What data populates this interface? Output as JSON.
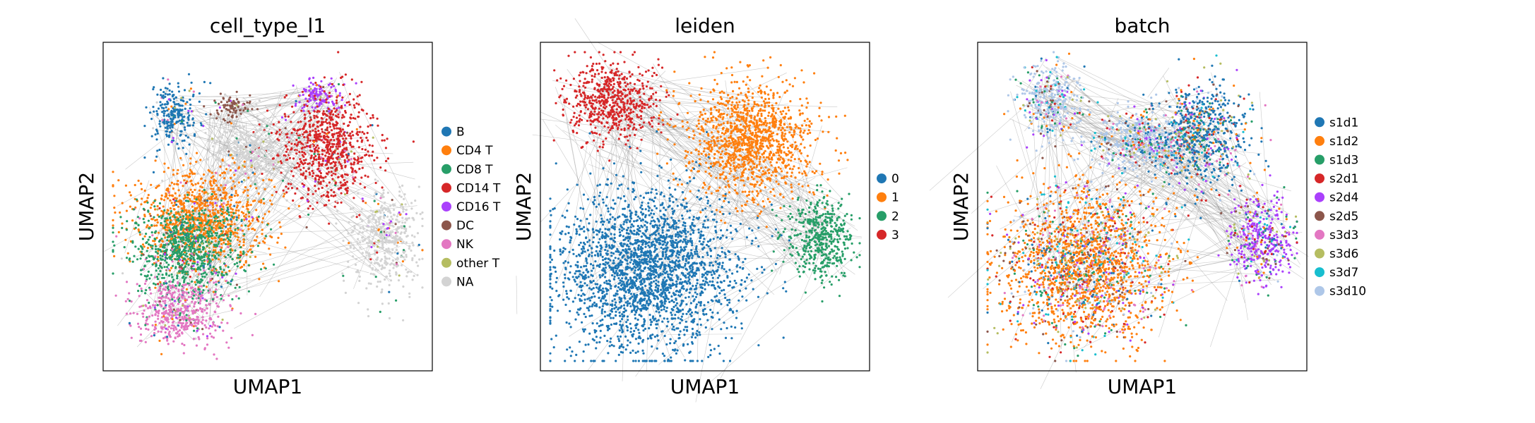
{
  "chart_data": [
    {
      "type": "scatter",
      "title": "cell_type_l1",
      "xlabel": "UMAP1",
      "ylabel": "UMAP2",
      "grid": false,
      "legend": "right",
      "legend_entries": [
        {
          "label": "B",
          "color": "#1f77b4"
        },
        {
          "label": "CD4 T",
          "color": "#ff7f0e"
        },
        {
          "label": "CD8 T",
          "color": "#279e68"
        },
        {
          "label": "CD14 T",
          "color": "#d62728"
        },
        {
          "label": "CD16 T",
          "color": "#aa40fc"
        },
        {
          "label": "DC",
          "color": "#8c564b"
        },
        {
          "label": "NK",
          "color": "#e377c2"
        },
        {
          "label": "other T",
          "color": "#b5bd61"
        },
        {
          "label": "NA",
          "color": "#d3d3d3"
        }
      ],
      "clusters": [
        {
          "label": "B",
          "cx": 0.22,
          "cy": 0.78,
          "rx": 0.07,
          "ry": 0.1
        },
        {
          "label": "DC",
          "cx": 0.4,
          "cy": 0.8,
          "rx": 0.06,
          "ry": 0.04
        },
        {
          "label": "CD16 T",
          "cx": 0.66,
          "cy": 0.84,
          "rx": 0.07,
          "ry": 0.05
        },
        {
          "label": "CD14 T",
          "cx": 0.68,
          "cy": 0.68,
          "rx": 0.14,
          "ry": 0.16
        },
        {
          "label": "NA",
          "cx": 0.44,
          "cy": 0.66,
          "rx": 0.12,
          "ry": 0.1
        },
        {
          "label": "NA",
          "cx": 0.86,
          "cy": 0.4,
          "rx": 0.1,
          "ry": 0.14
        },
        {
          "label": "CD4 T",
          "cx": 0.3,
          "cy": 0.46,
          "rx": 0.2,
          "ry": 0.15
        },
        {
          "label": "CD8 T",
          "cx": 0.26,
          "cy": 0.36,
          "rx": 0.17,
          "ry": 0.14
        },
        {
          "label": "NK",
          "cx": 0.24,
          "cy": 0.18,
          "rx": 0.14,
          "ry": 0.1
        }
      ]
    },
    {
      "type": "scatter",
      "title": "leiden",
      "xlabel": "UMAP1",
      "ylabel": "UMAP2",
      "grid": false,
      "legend": "right",
      "legend_entries": [
        {
          "label": "0",
          "color": "#1f77b4"
        },
        {
          "label": "1",
          "color": "#ff7f0e"
        },
        {
          "label": "2",
          "color": "#279e68"
        },
        {
          "label": "3",
          "color": "#d62728"
        }
      ],
      "clusters": [
        {
          "label": "3",
          "cx": 0.22,
          "cy": 0.82,
          "rx": 0.14,
          "ry": 0.12
        },
        {
          "label": "1",
          "cx": 0.64,
          "cy": 0.7,
          "rx": 0.19,
          "ry": 0.18
        },
        {
          "label": "2",
          "cx": 0.85,
          "cy": 0.4,
          "rx": 0.1,
          "ry": 0.13
        },
        {
          "label": "0",
          "cx": 0.32,
          "cy": 0.3,
          "rx": 0.27,
          "ry": 0.25
        }
      ]
    },
    {
      "type": "scatter",
      "title": "batch",
      "xlabel": "UMAP1",
      "ylabel": "UMAP2",
      "grid": false,
      "legend": "right",
      "legend_entries": [
        {
          "label": "s1d1",
          "color": "#1f77b4"
        },
        {
          "label": "s1d2",
          "color": "#ff7f0e"
        },
        {
          "label": "s1d3",
          "color": "#279e68"
        },
        {
          "label": "s2d1",
          "color": "#d62728"
        },
        {
          "label": "s2d4",
          "color": "#aa40fc"
        },
        {
          "label": "s2d5",
          "color": "#8c564b"
        },
        {
          "label": "s3d3",
          "color": "#e377c2"
        },
        {
          "label": "s3d6",
          "color": "#b5bd61"
        },
        {
          "label": "s3d7",
          "color": "#17becf"
        },
        {
          "label": "s3d10",
          "color": "#aec7e8"
        }
      ],
      "clusters": [
        {
          "label": "s3d10",
          "cx": 0.22,
          "cy": 0.82,
          "rx": 0.1,
          "ry": 0.11
        },
        {
          "label": "s3d10",
          "cx": 0.5,
          "cy": 0.7,
          "rx": 0.15,
          "ry": 0.1
        },
        {
          "label": "s1d1",
          "cx": 0.68,
          "cy": 0.72,
          "rx": 0.14,
          "ry": 0.15
        },
        {
          "label": "s2d4",
          "cx": 0.86,
          "cy": 0.4,
          "rx": 0.1,
          "ry": 0.13
        },
        {
          "label": "s1d2",
          "cx": 0.32,
          "cy": 0.32,
          "rx": 0.25,
          "ry": 0.24
        }
      ]
    }
  ]
}
